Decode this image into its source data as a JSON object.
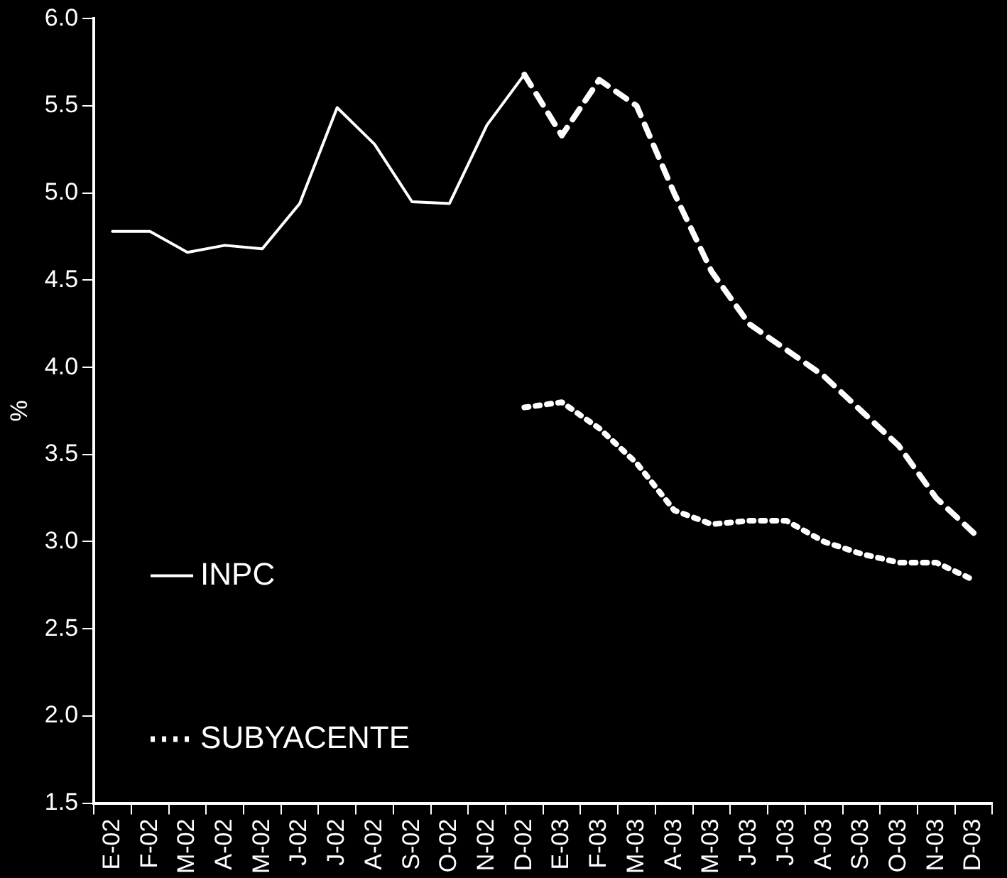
{
  "chart_data": {
    "type": "line",
    "ylabel": "%",
    "categories": [
      "E-02",
      "F-02",
      "M-02",
      "A-02",
      "M-02",
      "J-02",
      "J-02",
      "A-02",
      "S-02",
      "O-02",
      "N-02",
      "D-02",
      "E-03",
      "F-03",
      "M-03",
      "A-03",
      "M-03",
      "J-03",
      "J-03",
      "A-03",
      "S-03",
      "O-03",
      "N-03",
      "D-03"
    ],
    "ylim": [
      1.5,
      6.0
    ],
    "yticks": [
      {
        "value": 1.5,
        "label": "1.5"
      },
      {
        "value": 2,
        "label": "2.0"
      },
      {
        "value": 2.5,
        "label": "2.5"
      },
      {
        "value": 3,
        "label": "3.0"
      },
      {
        "value": 3.5,
        "label": "3.5"
      },
      {
        "value": 4,
        "label": "4.0"
      },
      {
        "value": 4.5,
        "label": "4.5"
      },
      {
        "value": 5,
        "label": "5.0"
      },
      {
        "value": 5.5,
        "label": "5.5"
      },
      {
        "value": 6,
        "label": "6.0"
      }
    ],
    "grid": false,
    "legend": "bottom left",
    "marker": "none",
    "series": [
      {
        "name": "INPC",
        "color": "#ffffff",
        "line_style": "solid",
        "values": [
          4.78,
          4.78,
          4.66,
          4.7,
          4.68,
          4.94,
          5.49,
          5.28,
          4.95,
          4.94,
          5.39,
          5.68,
          null,
          null,
          null,
          null,
          null,
          null,
          null,
          null,
          null,
          null,
          null,
          null
        ]
      },
      {
        "color": "#ffffff",
        "line_style": "dashed",
        "values": [
          null,
          null,
          null,
          null,
          null,
          null,
          null,
          null,
          null,
          null,
          null,
          5.68,
          5.33,
          5.65,
          5.5,
          5.0,
          4.55,
          4.25,
          4.1,
          3.95,
          3.75,
          3.55,
          3.25,
          3.05
        ]
      },
      {
        "name": "SUBYACENTE",
        "color": "#ffffff",
        "line_style": "dotted",
        "values": [
          null,
          null,
          null,
          null,
          null,
          null,
          null,
          null,
          null,
          null,
          null,
          3.77,
          3.8,
          3.65,
          3.45,
          3.18,
          3.1,
          3.12,
          3.12,
          3.0,
          2.93,
          2.88,
          2.88,
          2.78
        ]
      }
    ]
  }
}
